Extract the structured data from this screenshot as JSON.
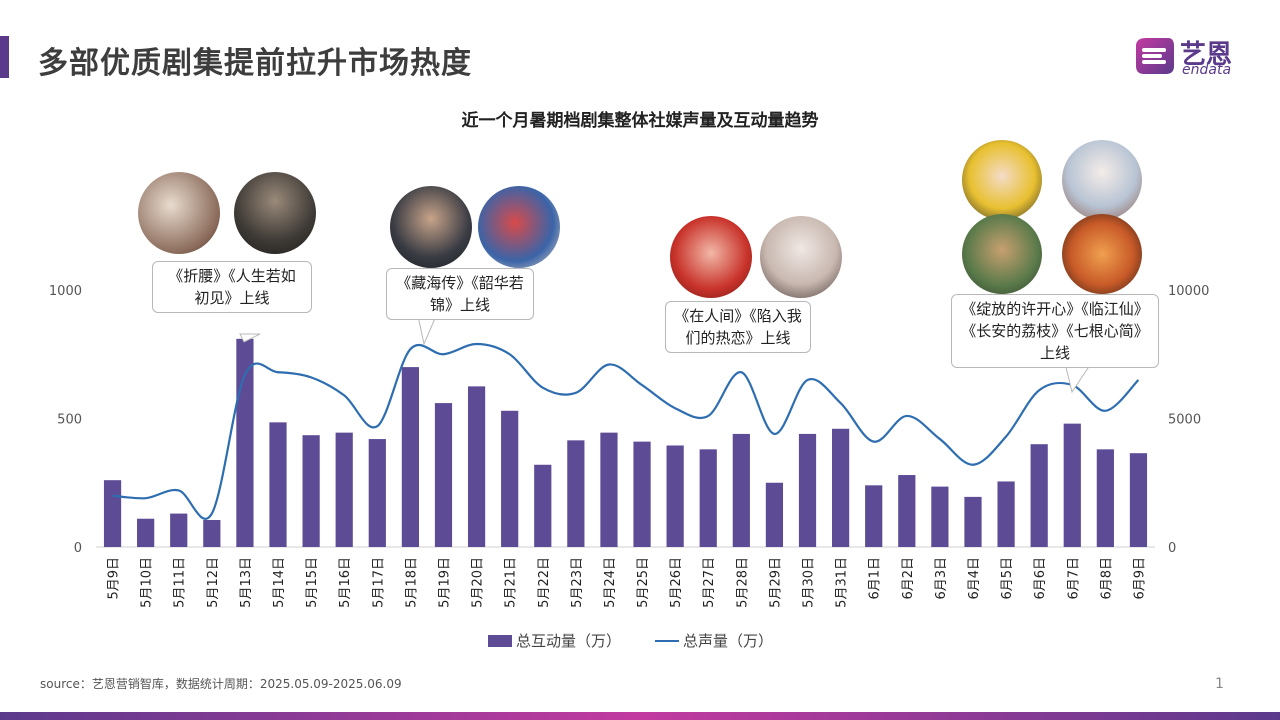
{
  "header": {
    "title": "多部优质剧集提前拉升市场热度",
    "logo_cn": "艺恩",
    "logo_en": "endata"
  },
  "colors": {
    "accent": "#5b3a8c",
    "bar": "#5e4b96",
    "line": "#2e6eb0",
    "brand_gradient_end": "#c23aa0"
  },
  "callouts": [
    {
      "text": "《折腰》《人生若如初见》上线",
      "icons": [
        "drama-poster-avatar",
        "drama-poster-avatar"
      ]
    },
    {
      "text": "《藏海传》《韶华若锦》上线",
      "icons": [
        "drama-poster-avatar",
        "drama-poster-avatar"
      ]
    },
    {
      "text": "《在人间》《陷入我们的热恋》上线",
      "icons": [
        "drama-poster-avatar",
        "drama-poster-avatar"
      ]
    },
    {
      "text": "《绽放的许开心》《临江仙》《长安的荔枝》《七根心简》上线",
      "icons": [
        "drama-poster-avatar",
        "drama-poster-avatar",
        "drama-poster-avatar",
        "drama-poster-avatar"
      ]
    }
  ],
  "chart_data": {
    "type": "bar",
    "title": "近一个月暑期档剧集整体社媒声量及互动量趋势",
    "categories": [
      "5月9日",
      "5月10日",
      "5月11日",
      "5月12日",
      "5月13日",
      "5月14日",
      "5月15日",
      "5月16日",
      "5月17日",
      "5月18日",
      "5月19日",
      "5月20日",
      "5月21日",
      "5月22日",
      "5月23日",
      "5月24日",
      "5月25日",
      "5月26日",
      "5月27日",
      "5月28日",
      "5月29日",
      "5月30日",
      "5月31日",
      "6月1日",
      "6月2日",
      "6月3日",
      "6月4日",
      "6月5日",
      "6月6日",
      "6月7日",
      "6月8日",
      "6月9日"
    ],
    "series": [
      {
        "name": "总互动量（万）",
        "type": "bar",
        "axis": "left",
        "values": [
          260,
          110,
          130,
          105,
          810,
          485,
          435,
          445,
          420,
          700,
          560,
          625,
          530,
          320,
          415,
          445,
          410,
          395,
          380,
          440,
          250,
          440,
          460,
          240,
          280,
          235,
          195,
          255,
          400,
          480,
          380,
          365
        ]
      },
      {
        "name": "总声量（万）",
        "type": "line",
        "axis": "right",
        "values": [
          2000,
          1900,
          2200,
          1300,
          6700,
          6800,
          6600,
          5900,
          4700,
          7700,
          7500,
          7900,
          7500,
          6200,
          6000,
          7100,
          6300,
          5400,
          5100,
          6800,
          4400,
          6500,
          5600,
          4100,
          5100,
          4200,
          3200,
          4300,
          6100,
          6300,
          5300,
          6500
        ]
      }
    ],
    "left_axis": {
      "ticks": [
        "0",
        "500",
        "1000"
      ],
      "ylim": [
        0,
        1000
      ]
    },
    "right_axis": {
      "ticks": [
        "0",
        "5000",
        "10000"
      ],
      "ylim": [
        0,
        10000
      ]
    },
    "legend": "bottom"
  },
  "footer": {
    "source": "source：艺恩营销智库，数据统计周期：2025.05.09-2025.06.09",
    "page_number": "1"
  }
}
